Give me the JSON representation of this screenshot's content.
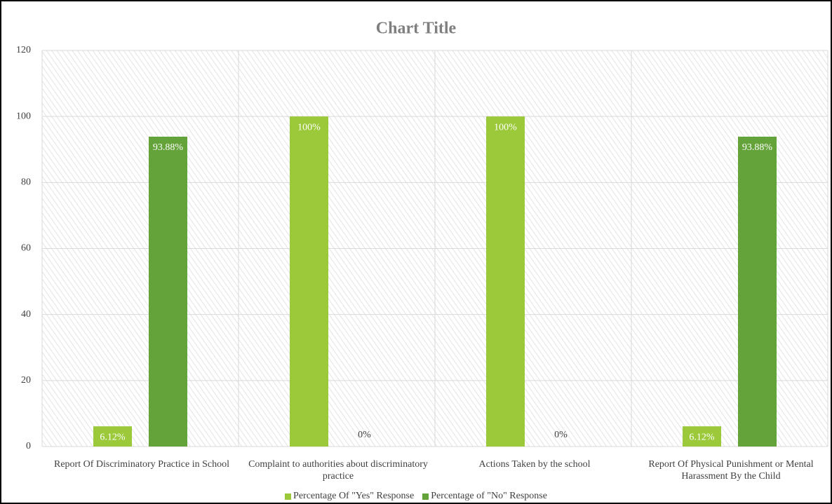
{
  "chart_data": {
    "type": "bar",
    "title": "Chart Title",
    "categories": [
      "Report Of Discriminatory Practice in School",
      "Complaint to authorities about discriminatory practice",
      "Actions Taken by the school",
      "Report Of Physical Punishment or Mental Harassment By the Child"
    ],
    "series": [
      {
        "name": "Percentage Of \"Yes\" Response",
        "color": "#9bc93a",
        "values": [
          6.12,
          100,
          100,
          6.12
        ],
        "value_labels": [
          "6.12%",
          "100%",
          "100%",
          "6.12%"
        ]
      },
      {
        "name": "Percentage of \"No\" Response",
        "color": "#63a33a",
        "values": [
          93.88,
          0,
          0,
          93.88
        ],
        "value_labels": [
          "93.88%",
          "0%",
          "0%",
          "93.88%"
        ]
      }
    ],
    "ylim": [
      0,
      120
    ],
    "yticks": [
      0,
      20,
      40,
      60,
      80,
      100,
      120
    ],
    "grid": true,
    "legend": "bottom"
  }
}
